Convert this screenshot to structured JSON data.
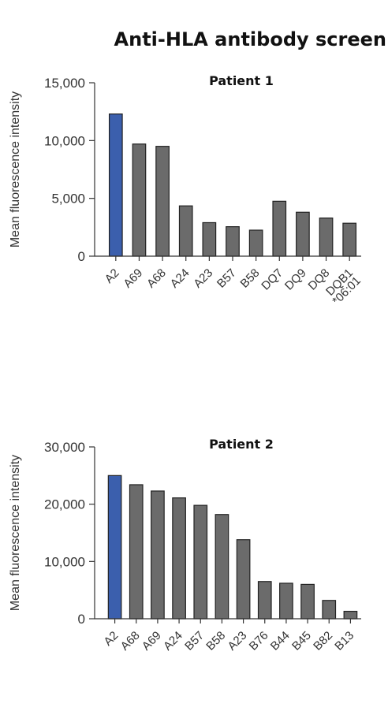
{
  "figure": {
    "title": "Anti-HLA antibody screen"
  },
  "colors": {
    "highlight": "#3b5fad",
    "bar": "#6b6b6b",
    "edge": "#222222"
  },
  "chart_data": [
    {
      "type": "bar",
      "title": "Patient 1",
      "ylabel": "Mean fluorescence intensity",
      "ylim": [
        0,
        15000
      ],
      "yticks": [
        0,
        5000,
        10000,
        15000
      ],
      "ytick_labels": [
        "0",
        "5,000",
        "10,000",
        "15,000"
      ],
      "categories": [
        "A2",
        "A69",
        "A68",
        "A24",
        "A23",
        "B57",
        "B58",
        "DQ7",
        "DQ9",
        "DQ8",
        "DQB1\n*06:01"
      ],
      "values": [
        12300,
        9700,
        9500,
        4350,
        2900,
        2550,
        2250,
        4750,
        3800,
        3300,
        2850
      ],
      "highlight_index": 0
    },
    {
      "type": "bar",
      "title": "Patient 2",
      "ylabel": "Mean fluorescence intensity",
      "ylim": [
        0,
        30000
      ],
      "yticks": [
        0,
        10000,
        20000,
        30000
      ],
      "ytick_labels": [
        "0",
        "10,000",
        "20,000",
        "30,000"
      ],
      "categories": [
        "A2",
        "A68",
        "A69",
        "A24",
        "B57",
        "B58",
        "A23",
        "B76",
        "B44",
        "B45",
        "B82",
        "B13"
      ],
      "values": [
        25000,
        23400,
        22300,
        21100,
        19800,
        18200,
        13800,
        6500,
        6200,
        6000,
        3200,
        1300
      ],
      "highlight_index": 0
    }
  ]
}
